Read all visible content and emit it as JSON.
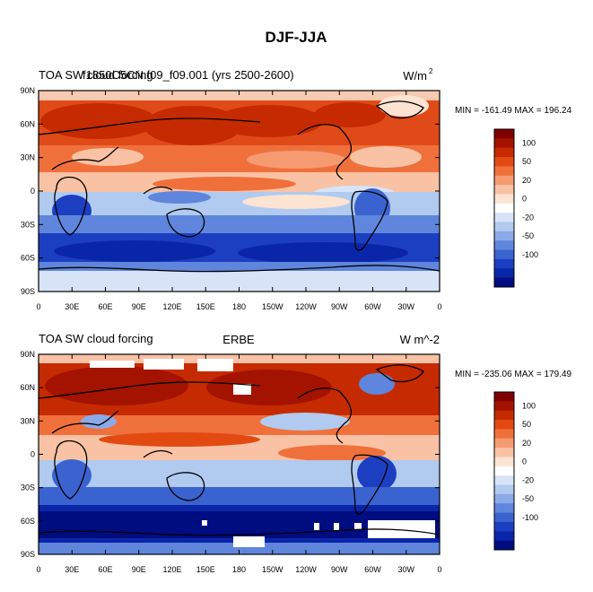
{
  "main_title": "DJF-JJA",
  "panels": [
    {
      "title_left_a": "TOA SW cloud forcing",
      "title_left_b": "f1850C5CN.f09_f09.001 (yrs 2500-2600)",
      "units_main": "W/m",
      "units_sup": "2",
      "stats": "MIN = -161.49 MAX = 196.24"
    },
    {
      "title_left": "TOA SW cloud forcing",
      "title_center": "ERBE",
      "units": "W m^-2",
      "stats": "MIN = -235.06 MAX = 179.49"
    }
  ],
  "lat_labels": [
    "90N",
    "60N",
    "30N",
    "0",
    "30S",
    "60S",
    "90S"
  ],
  "lon_labels": [
    "0",
    "30E",
    "60E",
    "90E",
    "120E",
    "150E",
    "180",
    "150W",
    "120W",
    "90W",
    "60W",
    "30W",
    "0"
  ],
  "colorbar": {
    "labels": [
      "100",
      "50",
      "20",
      "0",
      "-20",
      "-50",
      "-100"
    ],
    "colors": [
      "#7f0000",
      "#a31300",
      "#c62a00",
      "#e34a12",
      "#f0703c",
      "#f69a72",
      "#f9c2a4",
      "#fde3d2",
      "#ffffff",
      "#d7e4f7",
      "#b0caf0",
      "#8aaae8",
      "#5f86dc",
      "#3a63cf",
      "#1c3fc2",
      "#0a26a8",
      "#000d80"
    ]
  }
}
